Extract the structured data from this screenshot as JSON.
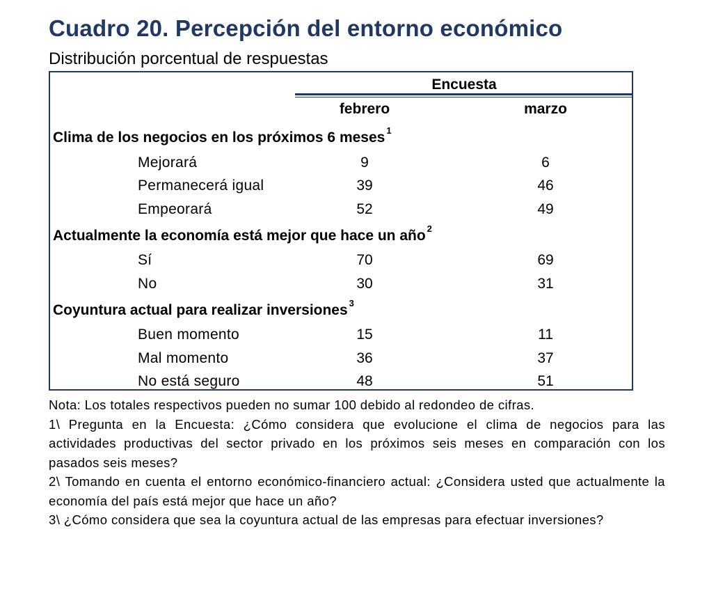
{
  "title": "Cuadro 20. Percepción del entorno económico",
  "subtitle": "Distribución porcentual de respuestas",
  "header": {
    "group": "Encuesta",
    "columns": [
      "febrero",
      "marzo"
    ]
  },
  "sections": [
    {
      "label": "Clima de los negocios en los próximos 6 meses",
      "note": "1",
      "rows": [
        {
          "label": "Mejorará",
          "febrero": "9",
          "marzo": "6"
        },
        {
          "label": "Permanecerá igual",
          "febrero": "39",
          "marzo": "46"
        },
        {
          "label": "Empeorará",
          "febrero": "52",
          "marzo": "49"
        }
      ]
    },
    {
      "label": "Actualmente la economía está mejor que hace un año",
      "note": "2",
      "rows": [
        {
          "label": "Sí",
          "febrero": "70",
          "marzo": "69"
        },
        {
          "label": "No",
          "febrero": "30",
          "marzo": "31"
        }
      ]
    },
    {
      "label": "Coyuntura actual para realizar inversiones",
      "note": "3",
      "rows": [
        {
          "label": "Buen momento",
          "febrero": "15",
          "marzo": "11"
        },
        {
          "label": "Mal momento",
          "febrero": "36",
          "marzo": "37"
        },
        {
          "label": "No está seguro",
          "febrero": "48",
          "marzo": "51"
        }
      ]
    }
  ],
  "notes": [
    "Nota: Los totales respectivos pueden no sumar 100 debido al redondeo de cifras.",
    "1\\ Pregunta en la Encuesta: ¿Cómo considera que evolucione el clima de negocios para las actividades productivas del sector privado en los próximos seis meses en comparación con los pasados seis meses?",
    "2\\ Tomando en cuenta el entorno económico-financiero actual: ¿Considera usted que actualmente la economía del país está mejor que hace un año?",
    "3\\ ¿Cómo considera que sea la coyuntura actual de las empresas para efectuar inversiones?"
  ],
  "colors": {
    "title": "#1f3864",
    "border": "#1f3864"
  }
}
